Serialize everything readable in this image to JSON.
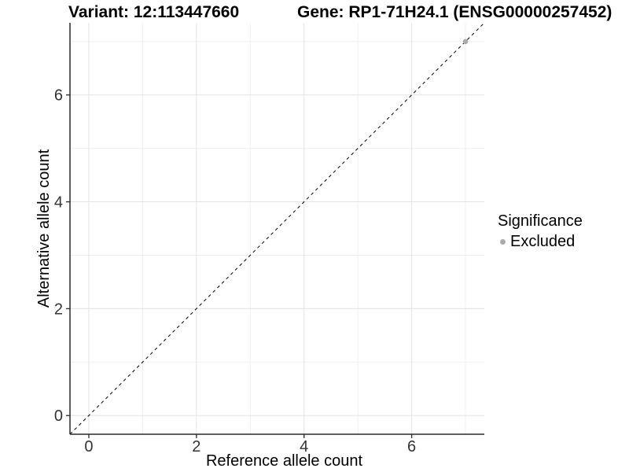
{
  "titles": {
    "variant": "Variant: 12:113447660",
    "gene": "Gene: RP1-71H24.1 (ENSG00000257452)"
  },
  "axes": {
    "x": {
      "label": "Reference allele count",
      "ticks": [
        0,
        2,
        4,
        6
      ],
      "minor_ticks": [
        1,
        3,
        5,
        7
      ],
      "range": [
        -0.35,
        7.35
      ]
    },
    "y": {
      "label": "Alternative allele count",
      "ticks": [
        0,
        2,
        4,
        6
      ],
      "minor_ticks": [
        1,
        3,
        5,
        7
      ],
      "range": [
        -0.35,
        7.35
      ]
    }
  },
  "legend": {
    "title": "Significance",
    "entries": [
      {
        "label": "Excluded",
        "color": "#ababab"
      }
    ]
  },
  "chart_data": {
    "type": "scatter",
    "title": "Variant: 12:113447660 — Gene: RP1-71H24.1 (ENSG00000257452)",
    "xlabel": "Reference allele count",
    "ylabel": "Alternative allele count",
    "xlim": [
      -0.35,
      7.35
    ],
    "ylim": [
      -0.35,
      7.35
    ],
    "x_ticks": [
      0,
      2,
      4,
      6
    ],
    "y_ticks": [
      0,
      2,
      4,
      6
    ],
    "x_minor_ticks": [
      1,
      3,
      5,
      7
    ],
    "y_minor_ticks": [
      1,
      3,
      5,
      7
    ],
    "grid": true,
    "legend_position": "right",
    "series": [
      {
        "name": "Excluded",
        "color": "#ababab",
        "points": [
          {
            "x": 7,
            "y": 7
          }
        ]
      }
    ],
    "reference_line": {
      "type": "identity",
      "slope": 1,
      "intercept": 0,
      "style": "dashed",
      "color": "#000000"
    }
  },
  "colors": {
    "background": "#ffffff",
    "grid_major": "#e3e3e3",
    "grid_minor": "#efefef",
    "axis_line": "#2a2a2a",
    "tick_label": "#333333",
    "point": "#ababab"
  }
}
